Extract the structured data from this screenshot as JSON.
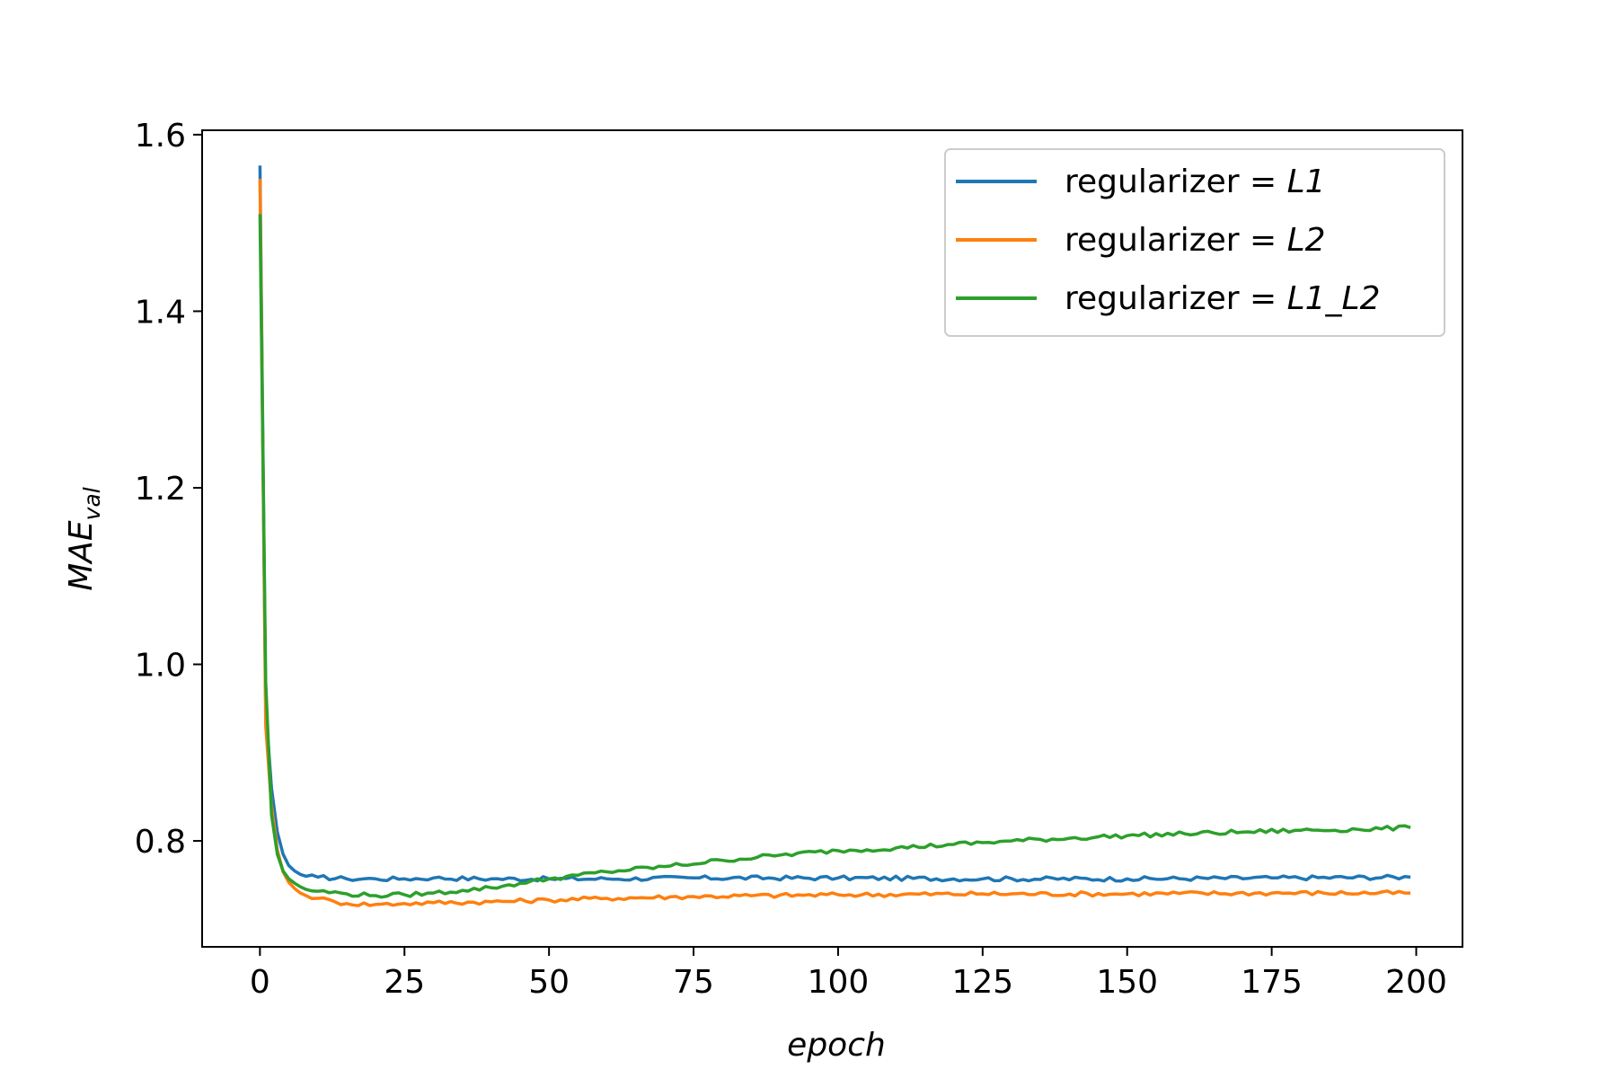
{
  "chart_data": {
    "type": "line",
    "xlabel": "epoch",
    "ylabel": "MAE",
    "ylabel_subscript": "val",
    "xlim": [
      -10,
      208
    ],
    "ylim": [
      0.68,
      1.605
    ],
    "xticks": [
      0,
      25,
      50,
      75,
      100,
      125,
      150,
      175,
      200
    ],
    "yticks": [
      0.8,
      1.0,
      1.2,
      1.4,
      1.6
    ],
    "xtick_labels": [
      "0",
      "25",
      "50",
      "75",
      "100",
      "125",
      "150",
      "175",
      "200"
    ],
    "ytick_labels": [
      "0.8",
      "1.0",
      "1.2",
      "1.4",
      "1.6"
    ],
    "grid": false,
    "legend": "top-right",
    "series": [
      {
        "name_prefix": "regularizer = ",
        "name_var": "L1",
        "color": "#1f77b4",
        "points": [
          [
            0,
            1.565
          ],
          [
            1,
            0.95
          ],
          [
            2,
            0.86
          ],
          [
            3,
            0.81
          ],
          [
            4,
            0.785
          ],
          [
            5,
            0.772
          ],
          [
            6,
            0.766
          ],
          [
            7,
            0.762
          ],
          [
            8,
            0.76
          ],
          [
            10,
            0.759
          ],
          [
            15,
            0.757
          ],
          [
            20,
            0.757
          ],
          [
            25,
            0.757
          ],
          [
            30,
            0.758
          ],
          [
            40,
            0.757
          ],
          [
            50,
            0.757
          ],
          [
            60,
            0.757
          ],
          [
            75,
            0.758
          ],
          [
            100,
            0.758
          ],
          [
            125,
            0.757
          ],
          [
            150,
            0.757
          ],
          [
            175,
            0.758
          ],
          [
            199,
            0.759
          ]
        ]
      },
      {
        "name_prefix": "regularizer = ",
        "name_var": "L2",
        "color": "#ff7f0e",
        "points": [
          [
            0,
            1.55
          ],
          [
            1,
            0.93
          ],
          [
            2,
            0.84
          ],
          [
            3,
            0.79
          ],
          [
            4,
            0.765
          ],
          [
            5,
            0.753
          ],
          [
            6,
            0.746
          ],
          [
            7,
            0.741
          ],
          [
            8,
            0.738
          ],
          [
            10,
            0.735
          ],
          [
            13,
            0.731
          ],
          [
            15,
            0.729
          ],
          [
            20,
            0.728
          ],
          [
            25,
            0.729
          ],
          [
            30,
            0.73
          ],
          [
            40,
            0.731
          ],
          [
            50,
            0.733
          ],
          [
            60,
            0.735
          ],
          [
            75,
            0.737
          ],
          [
            100,
            0.739
          ],
          [
            125,
            0.74
          ],
          [
            150,
            0.74
          ],
          [
            175,
            0.741
          ],
          [
            199,
            0.741
          ]
        ]
      },
      {
        "name_prefix": "regularizer = ",
        "name_var": "L1_L2",
        "color": "#2ca02c",
        "points": [
          [
            0,
            1.51
          ],
          [
            1,
            0.98
          ],
          [
            2,
            0.83
          ],
          [
            3,
            0.785
          ],
          [
            4,
            0.766
          ],
          [
            5,
            0.757
          ],
          [
            6,
            0.752
          ],
          [
            7,
            0.748
          ],
          [
            8,
            0.745
          ],
          [
            10,
            0.743
          ],
          [
            15,
            0.74
          ],
          [
            20,
            0.738
          ],
          [
            25,
            0.739
          ],
          [
            30,
            0.741
          ],
          [
            35,
            0.744
          ],
          [
            40,
            0.747
          ],
          [
            45,
            0.752
          ],
          [
            50,
            0.757
          ],
          [
            55,
            0.761
          ],
          [
            60,
            0.765
          ],
          [
            70,
            0.771
          ],
          [
            80,
            0.778
          ],
          [
            90,
            0.784
          ],
          [
            100,
            0.789
          ],
          [
            110,
            0.792
          ],
          [
            120,
            0.796
          ],
          [
            130,
            0.8
          ],
          [
            140,
            0.803
          ],
          [
            150,
            0.806
          ],
          [
            160,
            0.808
          ],
          [
            170,
            0.81
          ],
          [
            180,
            0.812
          ],
          [
            190,
            0.813
          ],
          [
            199,
            0.815
          ]
        ]
      }
    ]
  }
}
